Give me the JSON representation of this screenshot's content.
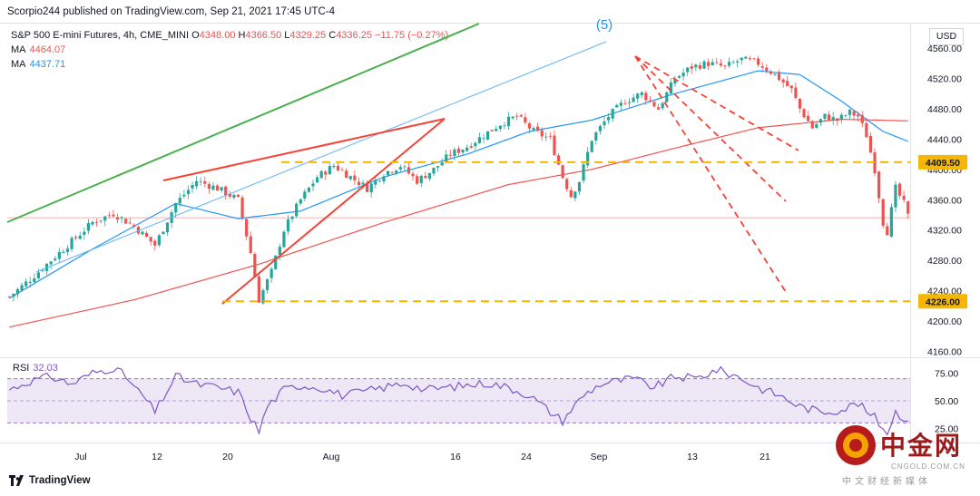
{
  "header": {
    "publisher": "Scorpio244 published on TradingView.com, Sep 21, 2021 17:45 UTC-4"
  },
  "legend": {
    "symbol": "S&P 500 E-mini Futures, 4h, CME_MINI",
    "open_label": "O",
    "open": "4348.00",
    "high_label": "H",
    "high": "4366.50",
    "low_label": "L",
    "low": "4329.25",
    "close_label": "C",
    "close": "4336.25",
    "change": "−11.75 (−0.27%)",
    "ma1_label": "MA",
    "ma1_value": "4464.07",
    "ma2_label": "MA",
    "ma2_value": "4437.71"
  },
  "rsi": {
    "label": "RSI",
    "value": "32.03"
  },
  "axis": {
    "currency": "USD"
  },
  "wave_label": "(5)",
  "branding": {
    "tradingview": "TradingView",
    "watermark_name": "中金网",
    "watermark_site": "CNGOLD.COM.CN",
    "watermark_sub": "中文财经新媒体"
  },
  "colors": {
    "bull": "#26a69a",
    "bear": "#ef5350",
    "ma_red": "#ef5350",
    "ma_blue": "#2196f3",
    "trend_green": "#4caf50",
    "trend_red": "#f44336",
    "channel": "#64b5f6",
    "level": "#f5b700",
    "rsi": "#7e57c2",
    "rsi_band": "#ede7f6"
  },
  "chart_data": {
    "type": "candlestick",
    "ylim": [
      4140,
      4580
    ],
    "y_ticks": [
      "4560.00",
      "4520.00",
      "4480.00",
      "4440.00",
      "4400.00",
      "4360.00",
      "4320.00",
      "4280.00",
      "4240.00",
      "4200.00",
      "4160.00"
    ],
    "x_ticks": [
      "Jul",
      "12",
      "20",
      "Aug",
      "16",
      "24",
      "Sep",
      "13",
      "21"
    ],
    "levels": [
      {
        "label": "4409.50",
        "value": 4409.5
      },
      {
        "label": "4226.00",
        "value": 4226.0
      }
    ],
    "price_anchors": [
      [
        0,
        4232
      ],
      [
        5,
        4255
      ],
      [
        12,
        4290
      ],
      [
        20,
        4330
      ],
      [
        25,
        4342
      ],
      [
        30,
        4325
      ],
      [
        35,
        4300
      ],
      [
        40,
        4355
      ],
      [
        45,
        4385
      ],
      [
        50,
        4375
      ],
      [
        55,
        4360
      ],
      [
        58,
        4290
      ],
      [
        60,
        4228
      ],
      [
        63,
        4265
      ],
      [
        66,
        4320
      ],
      [
        70,
        4360
      ],
      [
        74,
        4390
      ],
      [
        78,
        4405
      ],
      [
        82,
        4390
      ],
      [
        86,
        4375
      ],
      [
        90,
        4395
      ],
      [
        94,
        4405
      ],
      [
        98,
        4385
      ],
      [
        102,
        4400
      ],
      [
        106,
        4420
      ],
      [
        110,
        4430
      ],
      [
        114,
        4445
      ],
      [
        118,
        4460
      ],
      [
        122,
        4470
      ],
      [
        126,
        4450
      ],
      [
        130,
        4440
      ],
      [
        133,
        4390
      ],
      [
        135,
        4365
      ],
      [
        137,
        4385
      ],
      [
        140,
        4440
      ],
      [
        144,
        4470
      ],
      [
        148,
        4490
      ],
      [
        152,
        4500
      ],
      [
        156,
        4480
      ],
      [
        160,
        4520
      ],
      [
        164,
        4535
      ],
      [
        168,
        4540
      ],
      [
        172,
        4535
      ],
      [
        176,
        4545
      ],
      [
        180,
        4540
      ],
      [
        184,
        4525
      ],
      [
        188,
        4505
      ],
      [
        190,
        4480
      ],
      [
        193,
        4455
      ],
      [
        196,
        4470
      ],
      [
        199,
        4465
      ],
      [
        202,
        4475
      ],
      [
        204,
        4470
      ],
      [
        206,
        4445
      ],
      [
        208,
        4400
      ],
      [
        210,
        4330
      ],
      [
        211,
        4318
      ],
      [
        213,
        4375
      ],
      [
        215,
        4355
      ],
      [
        216,
        4338
      ]
    ],
    "ma_slow": [
      [
        0,
        4192
      ],
      [
        30,
        4228
      ],
      [
        60,
        4275
      ],
      [
        90,
        4330
      ],
      [
        120,
        4380
      ],
      [
        140,
        4400
      ],
      [
        160,
        4428
      ],
      [
        180,
        4455
      ],
      [
        200,
        4466
      ],
      [
        216,
        4464
      ]
    ],
    "ma_fast": [
      [
        0,
        4230
      ],
      [
        20,
        4295
      ],
      [
        40,
        4355
      ],
      [
        55,
        4335
      ],
      [
        70,
        4345
      ],
      [
        90,
        4390
      ],
      [
        110,
        4420
      ],
      [
        125,
        4450
      ],
      [
        140,
        4465
      ],
      [
        160,
        4500
      ],
      [
        180,
        4530
      ],
      [
        190,
        4525
      ],
      [
        200,
        4490
      ],
      [
        210,
        4450
      ],
      [
        216,
        4437
      ]
    ],
    "rsi_ylim": [
      15,
      90
    ],
    "rsi_ticks": [
      "75.00",
      "50.00",
      "25.00"
    ],
    "rsi_band": [
      30,
      70
    ],
    "rsi_anchors": [
      [
        0,
        60
      ],
      [
        5,
        68
      ],
      [
        10,
        72
      ],
      [
        15,
        65
      ],
      [
        20,
        75
      ],
      [
        25,
        80
      ],
      [
        28,
        72
      ],
      [
        30,
        62
      ],
      [
        32,
        55
      ],
      [
        35,
        40
      ],
      [
        40,
        72
      ],
      [
        45,
        65
      ],
      [
        50,
        62
      ],
      [
        55,
        58
      ],
      [
        58,
        35
      ],
      [
        60,
        22
      ],
      [
        62,
        45
      ],
      [
        66,
        60
      ],
      [
        70,
        64
      ],
      [
        75,
        62
      ],
      [
        80,
        55
      ],
      [
        85,
        58
      ],
      [
        90,
        62
      ],
      [
        95,
        66
      ],
      [
        100,
        60
      ],
      [
        105,
        62
      ],
      [
        110,
        64
      ],
      [
        115,
        66
      ],
      [
        120,
        62
      ],
      [
        125,
        55
      ],
      [
        130,
        40
      ],
      [
        133,
        32
      ],
      [
        135,
        42
      ],
      [
        138,
        55
      ],
      [
        142,
        65
      ],
      [
        146,
        68
      ],
      [
        150,
        70
      ],
      [
        155,
        62
      ],
      [
        160,
        72
      ],
      [
        165,
        70
      ],
      [
        170,
        78
      ],
      [
        175,
        72
      ],
      [
        180,
        62
      ],
      [
        185,
        55
      ],
      [
        190,
        45
      ],
      [
        195,
        40
      ],
      [
        200,
        42
      ],
      [
        204,
        48
      ],
      [
        206,
        40
      ],
      [
        208,
        35
      ],
      [
        210,
        25
      ],
      [
        211,
        22
      ],
      [
        213,
        40
      ],
      [
        215,
        35
      ],
      [
        216,
        32
      ]
    ]
  }
}
